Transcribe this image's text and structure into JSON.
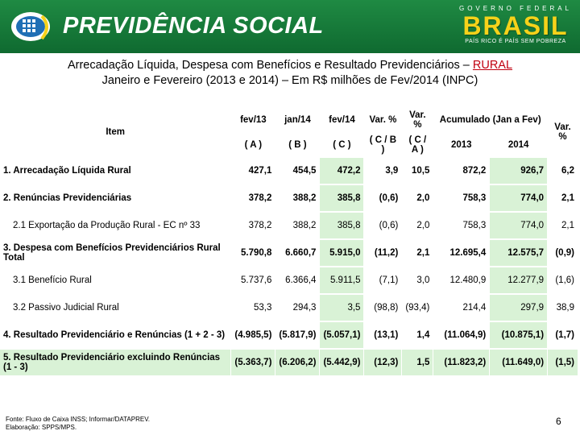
{
  "header": {
    "brand": "PREVIDÊNCIA SOCIAL",
    "gov_top": "GOVERNO FEDERAL",
    "gov_big": "BRASIL",
    "gov_sub": "PAÍS RICO É PAÍS SEM POBREZA",
    "colors": {
      "green": "#1f8a43",
      "yellow": "#f5d21a"
    }
  },
  "title": {
    "line1_prefix": "Arrecadação Líquida, Despesa com Benefícios e Resultado Previdenciários – ",
    "line1_highlight": "RURAL",
    "line2": "Janeiro e Fevereiro (2013 e 2014) – Em R$ milhões de Fev/2014 (INPC)"
  },
  "table": {
    "header_row1": [
      "Item",
      "fev/13",
      "jan/14",
      "fev/14",
      "Var. %",
      "Var. %",
      "Acumulado (Jan a Fev)",
      "Var. %"
    ],
    "header_row2": [
      "( A )",
      "( B )",
      "( C )",
      "( C / B )",
      "( C / A )",
      "2013",
      "2014"
    ],
    "rows": [
      {
        "item": "1. Arrecadação Líquida Rural",
        "a": "427,1",
        "b": "454,5",
        "c": "472,2",
        "cb": "3,9",
        "ca": "10,5",
        "y13": "872,2",
        "y14": "926,7",
        "var": "6,2"
      },
      {
        "item": "2. Renúncias Previdenciárias",
        "a": "378,2",
        "b": "388,2",
        "c": "385,8",
        "cb": "(0,6)",
        "ca": "2,0",
        "y13": "758,3",
        "y14": "774,0",
        "var": "2,1"
      },
      {
        "item": "2.1 Exportação da Produção Rural - EC nº 33",
        "a": "378,2",
        "b": "388,2",
        "c": "385,8",
        "cb": "(0,6)",
        "ca": "2,0",
        "y13": "758,3",
        "y14": "774,0",
        "var": "2,1"
      },
      {
        "item": "3. Despesa com Benefícios Previdenciários Rural Total",
        "a": "5.790,8",
        "b": "6.660,7",
        "c": "5.915,0",
        "cb": "(11,2)",
        "ca": "2,1",
        "y13": "12.695,4",
        "y14": "12.575,7",
        "var": "(0,9)"
      },
      {
        "item": "3.1 Benefício Rural",
        "a": "5.737,6",
        "b": "6.366,4",
        "c": "5.911,5",
        "cb": "(7,1)",
        "ca": "3,0",
        "y13": "12.480,9",
        "y14": "12.277,9",
        "var": "(1,6)"
      },
      {
        "item": "3.2 Passivo Judicial Rural",
        "a": "53,3",
        "b": "294,3",
        "c": "3,5",
        "cb": "(98,8)",
        "ca": "(93,4)",
        "y13": "214,4",
        "y14": "297,9",
        "var": "38,9"
      },
      {
        "item": "4. Resultado Previdenciário e Renúncias (1 + 2 - 3)",
        "a": "(4.985,5)",
        "b": "(5.817,9)",
        "c": "(5.057,1)",
        "cb": "(13,1)",
        "ca": "1,4",
        "y13": "(11.064,9)",
        "y14": "(10.875,1)",
        "var": "(1,7)"
      },
      {
        "item": "5. Resultado Previdenciário excluindo Renúncias (1 - 3)",
        "a": "(5.363,7)",
        "b": "(6.206,2)",
        "c": "(5.442,9)",
        "cb": "(12,3)",
        "ca": "1,5",
        "y13": "(11.823,2)",
        "y14": "(11.649,0)",
        "var": "(1,5)"
      }
    ]
  },
  "footer": {
    "line1": "Fonte: Fluxo de Caixa INSS; Informar/DATAPREV.",
    "line2": "Elaboração: SPPS/MPS.",
    "page": "6"
  }
}
